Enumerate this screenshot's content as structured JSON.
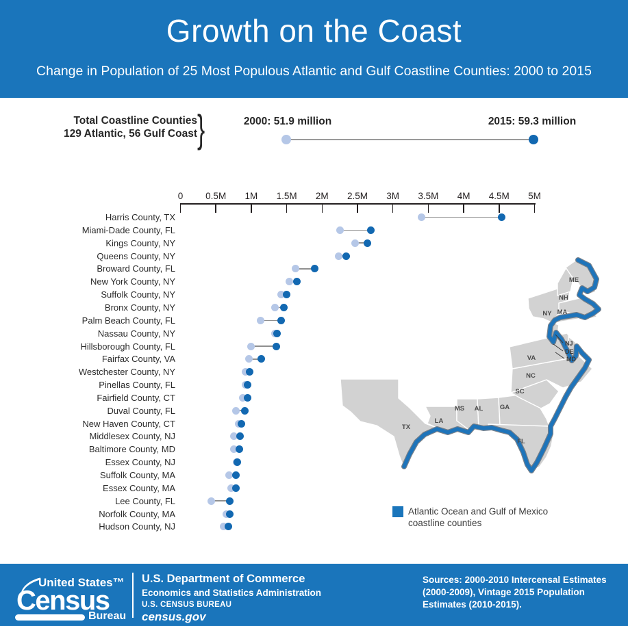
{
  "header": {
    "title": "Growth on the Coast",
    "subtitle": "Change in Population of 25 Most Populous Atlantic and Gulf Coastline Counties: 2000 to 2015"
  },
  "summary": {
    "label_line1": "Total Coastline Counties",
    "label_line2": "129 Atlantic, 56 Gulf Coast",
    "brace": "}",
    "start_label": "2000: 51.9 million",
    "end_label": "2015: 59.3 million",
    "start_value_millions": 51.9,
    "end_value_millions": 59.3
  },
  "chart_data": {
    "type": "dumbbell",
    "title": "Change in Population of 25 Most Populous Atlantic and Gulf Coastline Counties: 2000 to 2015",
    "x_unit": "population (millions)",
    "x_range_millions": [
      0,
      5
    ],
    "axis_ticks": [
      {
        "label": "0",
        "value": 0
      },
      {
        "label": "0.5M",
        "value": 0.5
      },
      {
        "label": "1M",
        "value": 1
      },
      {
        "label": "1.5M",
        "value": 1.5
      },
      {
        "label": "2M",
        "value": 2
      },
      {
        "label": "2.5M",
        "value": 2.5
      },
      {
        "label": "3M",
        "value": 3
      },
      {
        "label": "3.5M",
        "value": 3.5
      },
      {
        "label": "4M",
        "value": 4
      },
      {
        "label": "4.5M",
        "value": 4.5
      },
      {
        "label": "5M",
        "value": 5
      }
    ],
    "series_names": [
      "2000",
      "2015"
    ],
    "counties": [
      {
        "label": "Harris County, TX",
        "y2000": 3.4,
        "y2015": 4.54
      },
      {
        "label": "Miami-Dade County, FL",
        "y2000": 2.25,
        "y2015": 2.69
      },
      {
        "label": "Kings County, NY",
        "y2000": 2.47,
        "y2015": 2.64
      },
      {
        "label": "Queens County, NY",
        "y2000": 2.23,
        "y2015": 2.34
      },
      {
        "label": "Broward County, FL",
        "y2000": 1.62,
        "y2015": 1.9
      },
      {
        "label": "New York County, NY",
        "y2000": 1.54,
        "y2015": 1.64
      },
      {
        "label": "Suffolk County, NY",
        "y2000": 1.42,
        "y2015": 1.5
      },
      {
        "label": "Bronx County, NY",
        "y2000": 1.33,
        "y2015": 1.46
      },
      {
        "label": "Palm Beach County, FL",
        "y2000": 1.13,
        "y2015": 1.42
      },
      {
        "label": "Nassau County, NY",
        "y2000": 1.33,
        "y2015": 1.36
      },
      {
        "label": "Hillsborough County, FL",
        "y2000": 1.0,
        "y2015": 1.35
      },
      {
        "label": "Fairfax County, VA",
        "y2000": 0.97,
        "y2015": 1.14
      },
      {
        "label": "Westchester County, NY",
        "y2000": 0.92,
        "y2015": 0.98
      },
      {
        "label": "Pinellas County, FL",
        "y2000": 0.92,
        "y2015": 0.95
      },
      {
        "label": "Fairfield County, CT",
        "y2000": 0.88,
        "y2015": 0.95
      },
      {
        "label": "Duval County, FL",
        "y2000": 0.78,
        "y2015": 0.91
      },
      {
        "label": "New Haven County, CT",
        "y2000": 0.82,
        "y2015": 0.86
      },
      {
        "label": "Middlesex County, NJ",
        "y2000": 0.75,
        "y2015": 0.84
      },
      {
        "label": "Baltimore County, MD",
        "y2000": 0.75,
        "y2015": 0.83
      },
      {
        "label": "Essex County, NJ",
        "y2000": 0.79,
        "y2015": 0.8
      },
      {
        "label": "Suffolk County, MA",
        "y2000": 0.69,
        "y2015": 0.78
      },
      {
        "label": "Essex County, MA",
        "y2000": 0.72,
        "y2015": 0.78
      },
      {
        "label": "Lee County, FL",
        "y2000": 0.44,
        "y2015": 0.7
      },
      {
        "label": "Norfolk County, MA",
        "y2000": 0.65,
        "y2015": 0.7
      },
      {
        "label": "Hudson County, NJ",
        "y2000": 0.61,
        "y2015": 0.68
      }
    ]
  },
  "map": {
    "labels": {
      "tx": "TX",
      "la": "LA",
      "ms": "MS",
      "al": "AL",
      "ga": "GA",
      "sc": "SC",
      "nc": "NC",
      "va": "VA",
      "fl": "FL",
      "ny": "NY",
      "ma": "MA",
      "nh": "NH",
      "me": "ME",
      "nj": "NJ",
      "de": "DE",
      "md": "MD"
    }
  },
  "legend": {
    "label": "Atlantic Ocean and Gulf of Mexico coastline counties"
  },
  "footer": {
    "logo_top": "United States™",
    "logo_main": "Census",
    "logo_sub": "Bureau",
    "dept_line1": "U.S. Department of Commerce",
    "dept_line2": "Economics and Statistics Administration",
    "dept_line3": "U.S. CENSUS BUREAU",
    "dept_line4": "census.gov",
    "sources": "Sources: 2000-2010 Intercensal Estimates (2000-2009), Vintage 2015 Population Estimates (2010-2015)."
  },
  "colors": {
    "brand_blue": "#1a75bb",
    "dot_2000": "#b5c7e7",
    "dot_2015": "#1268b1",
    "connector_gray": "#8f8f8f",
    "map_land": "#d2d2d2",
    "coast_edge": "#6a7480"
  }
}
